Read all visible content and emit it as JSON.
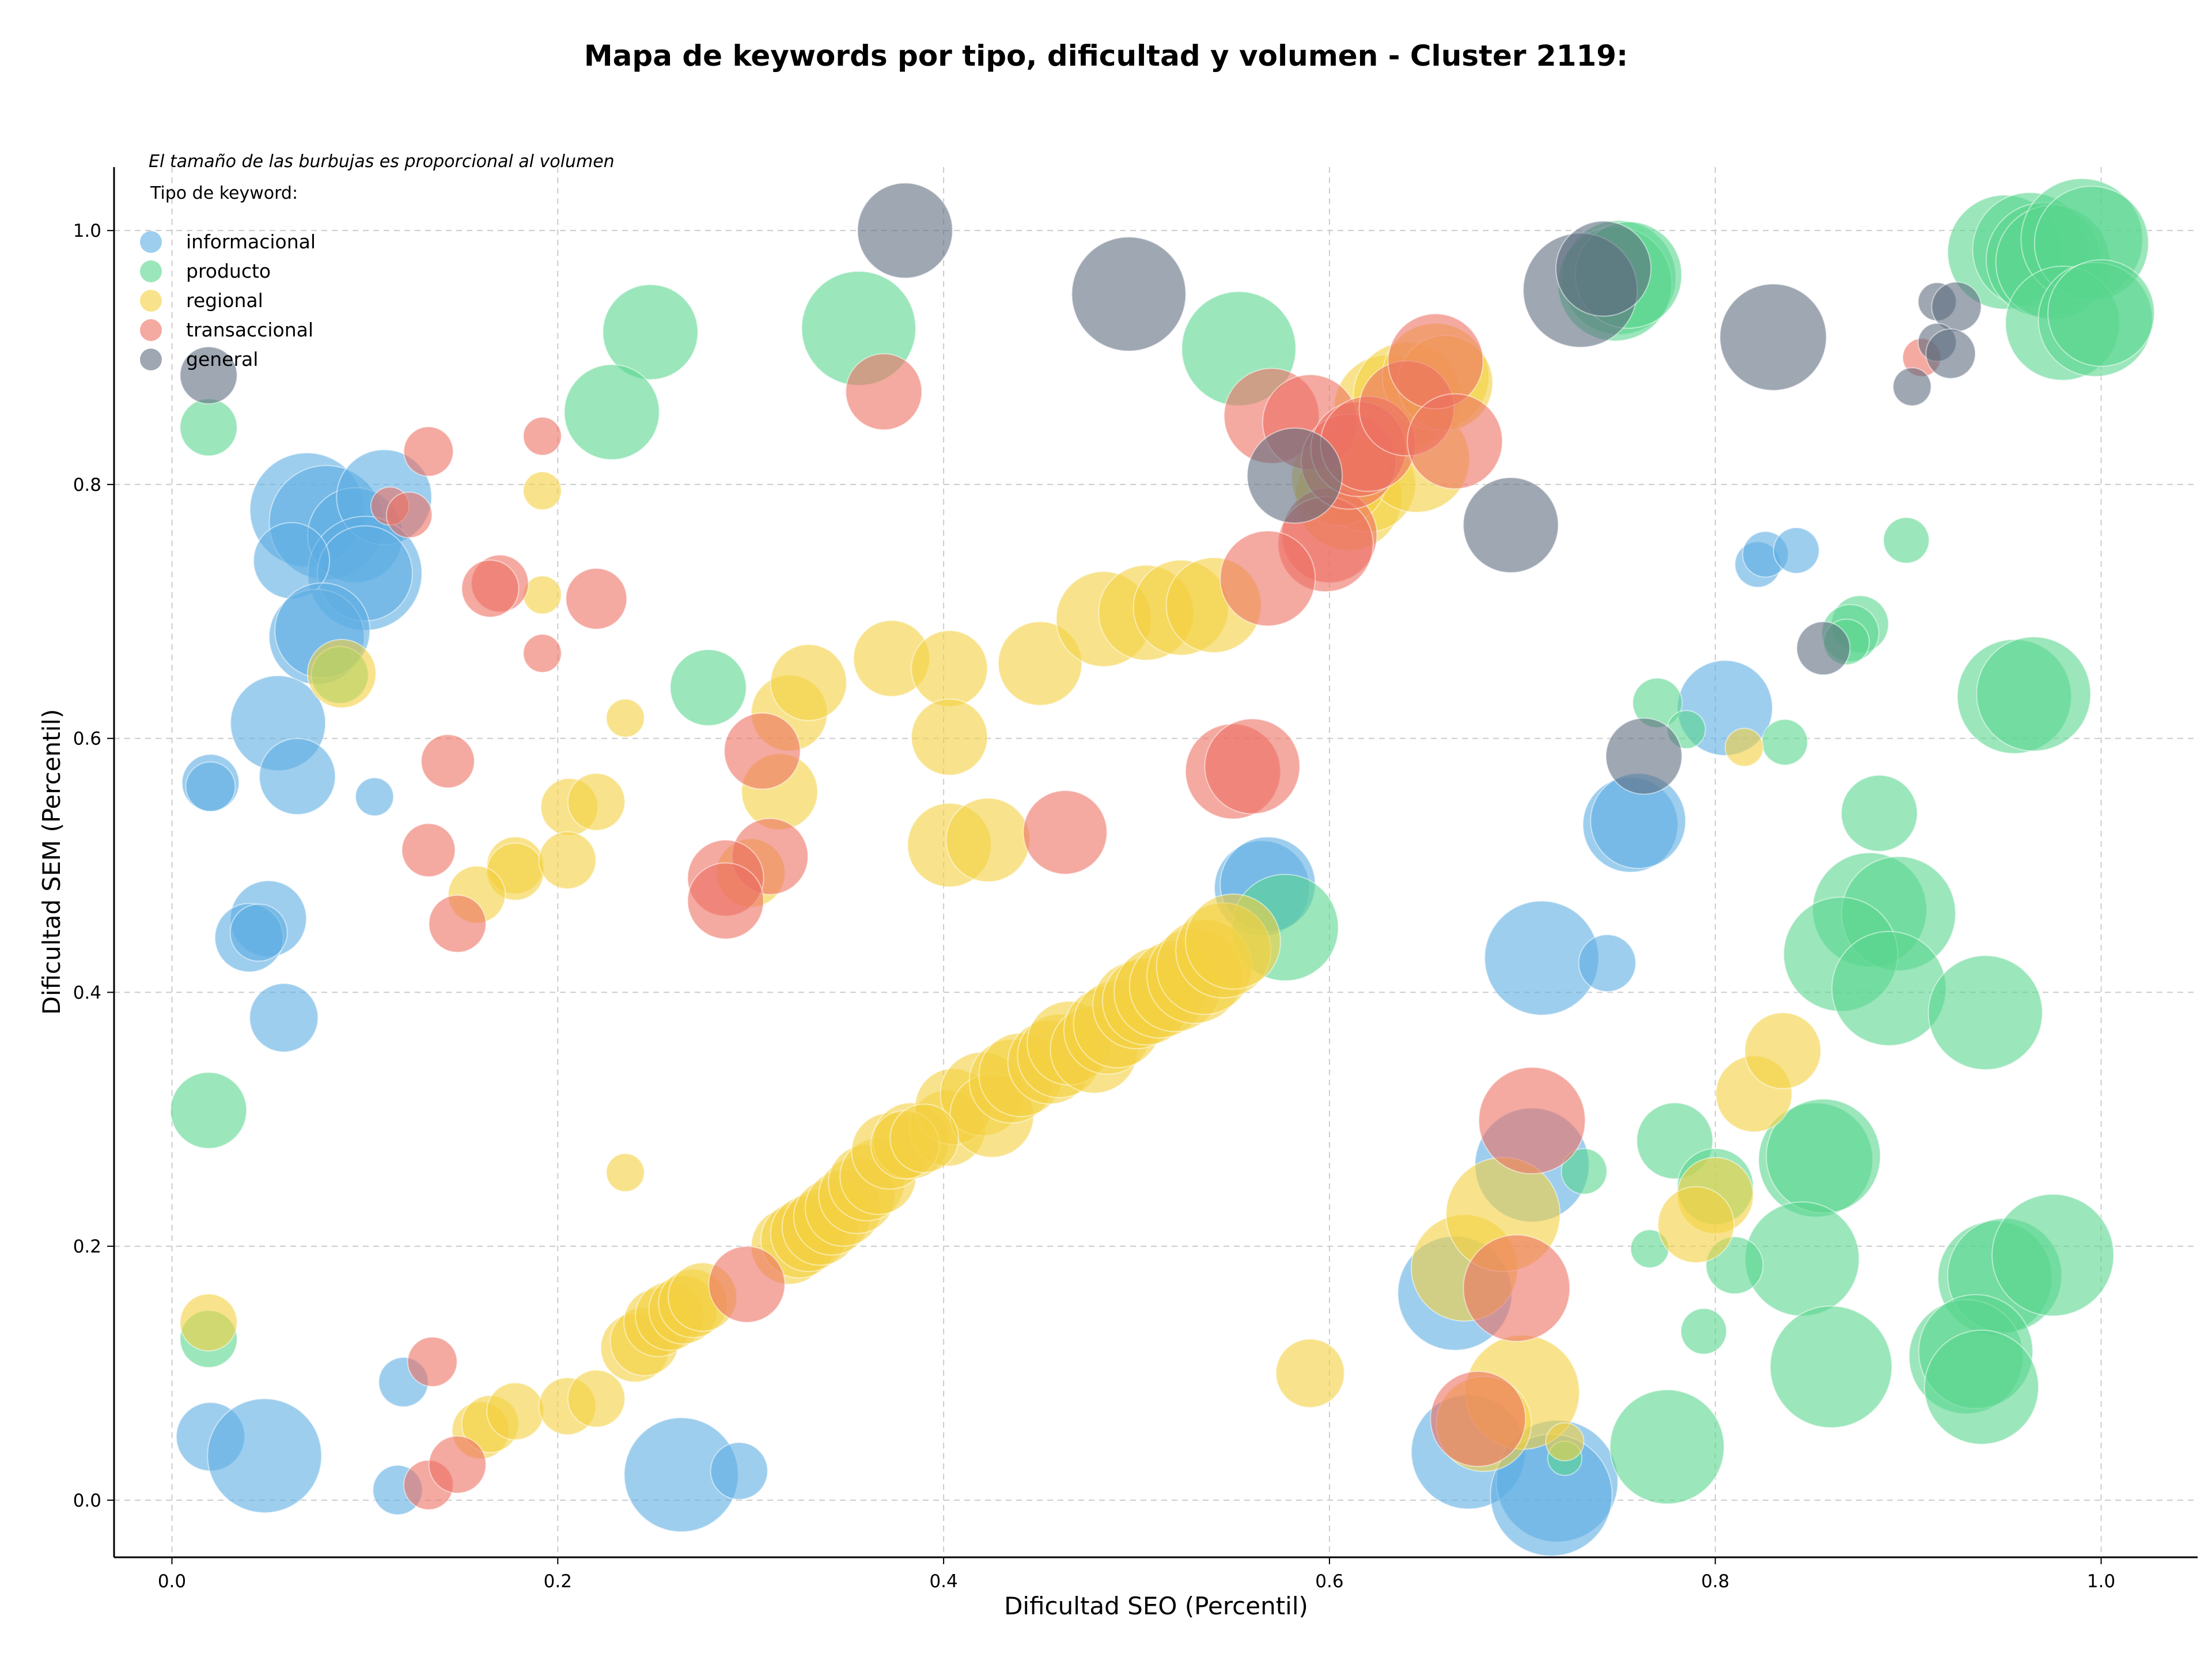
{
  "chart_data": {
    "type": "scatter",
    "title": "Mapa de keywords por tipo, dificultad y volumen - Cluster 2119:",
    "xlabel": "Dificultad SEO (Percentil)",
    "ylabel": "Dificultad SEM (Percentil)",
    "xlim": [
      -0.03,
      1.05
    ],
    "ylim": [
      -0.045,
      1.05
    ],
    "xticks": [
      "0.0",
      "0.2",
      "0.4",
      "0.6",
      "0.8",
      "1.0"
    ],
    "yticks": [
      "0.0",
      "0.2",
      "0.4",
      "0.6",
      "0.8",
      "1.0"
    ],
    "grid": true,
    "size_note": "El tamaño de las burbujas es proporcional al volumen",
    "legend_title": "Tipo de keyword:",
    "legend_position": "top-left",
    "series": [
      {
        "name": "informacional",
        "color": "#5dade2",
        "points": [
          [
            0.07,
            0.78,
            3
          ],
          [
            0.08,
            0.77,
            3
          ],
          [
            0.095,
            0.76,
            2.5
          ],
          [
            0.11,
            0.79,
            2.5
          ],
          [
            0.1,
            0.73,
            3
          ],
          [
            0.1,
            0.73,
            2.5
          ],
          [
            0.062,
            0.74,
            2
          ],
          [
            0.075,
            0.68,
            2.5
          ],
          [
            0.078,
            0.685,
            2.5
          ],
          [
            0.055,
            0.612,
            2.5
          ],
          [
            0.065,
            0.57,
            2
          ],
          [
            0.02,
            0.565,
            1.5
          ],
          [
            0.02,
            0.562,
            1.3
          ],
          [
            0.105,
            0.554,
            1
          ],
          [
            0.05,
            0.458,
            2
          ],
          [
            0.04,
            0.443,
            1.8
          ],
          [
            0.045,
            0.447,
            1.5
          ],
          [
            0.058,
            0.38,
            1.8
          ],
          [
            0.02,
            0.05,
            1.8
          ],
          [
            0.048,
            0.035,
            3
          ],
          [
            0.12,
            0.093,
            1.3
          ],
          [
            0.117,
            0.008,
            1.3
          ],
          [
            0.264,
            0.02,
            3
          ],
          [
            0.294,
            0.023,
            1.5
          ],
          [
            0.805,
            0.624,
            2.5
          ],
          [
            0.822,
            0.737,
            1.2
          ],
          [
            0.826,
            0.745,
            1.2
          ],
          [
            0.842,
            0.748,
            1.2
          ],
          [
            0.756,
            0.532,
            2.5
          ],
          [
            0.76,
            0.535,
            2.5
          ],
          [
            0.565,
            0.482,
            2.5
          ],
          [
            0.568,
            0.485,
            2.5
          ],
          [
            0.71,
            0.427,
            3
          ],
          [
            0.744,
            0.423,
            1.5
          ],
          [
            0.705,
            0.264,
            3
          ],
          [
            0.665,
            0.163,
            3
          ],
          [
            0.672,
            0.038,
            3
          ],
          [
            0.718,
            0.015,
            3.2
          ],
          [
            0.715,
            0.004,
            3.2
          ]
        ]
      },
      {
        "name": "producto",
        "color": "#58d68d",
        "points": [
          [
            0.019,
            0.845,
            1.5
          ],
          [
            0.248,
            0.92,
            2.5
          ],
          [
            0.356,
            0.923,
            3
          ],
          [
            0.228,
            0.857,
            2.5
          ],
          [
            0.278,
            0.64,
            2
          ],
          [
            0.087,
            0.65,
            1.5
          ],
          [
            0.019,
            0.307,
            2
          ],
          [
            0.019,
            0.127,
            1.5
          ],
          [
            0.553,
            0.907,
            3
          ],
          [
            0.577,
            0.451,
            2.8
          ],
          [
            0.75,
            0.963,
            3
          ],
          [
            0.748,
            0.958,
            3
          ],
          [
            0.755,
            0.965,
            2.8
          ],
          [
            0.95,
            0.983,
            3
          ],
          [
            0.963,
            0.985,
            3
          ],
          [
            0.97,
            0.977,
            3
          ],
          [
            0.975,
            0.975,
            3
          ],
          [
            0.99,
            0.993,
            3.2
          ],
          [
            0.995,
            0.99,
            3
          ],
          [
            0.98,
            0.927,
            3
          ],
          [
            0.997,
            0.93,
            3
          ],
          [
            1.0,
            0.935,
            2.8
          ],
          [
            0.899,
            0.756,
            1.2
          ],
          [
            0.875,
            0.69,
            1.5
          ],
          [
            0.87,
            0.683,
            1.5
          ],
          [
            0.868,
            0.676,
            1.2
          ],
          [
            0.955,
            0.633,
            3
          ],
          [
            0.965,
            0.635,
            3
          ],
          [
            0.77,
            0.628,
            1.3
          ],
          [
            0.785,
            0.607,
            1
          ],
          [
            0.836,
            0.597,
            1.2
          ],
          [
            0.885,
            0.541,
            2
          ],
          [
            0.88,
            0.465,
            3
          ],
          [
            0.895,
            0.462,
            3
          ],
          [
            0.865,
            0.43,
            3
          ],
          [
            0.89,
            0.403,
            3
          ],
          [
            0.94,
            0.384,
            3
          ],
          [
            0.779,
            0.283,
            2
          ],
          [
            0.8,
            0.247,
            2
          ],
          [
            0.732,
            0.259,
            1.2
          ],
          [
            0.852,
            0.268,
            3
          ],
          [
            0.856,
            0.271,
            3
          ],
          [
            0.845,
            0.19,
            3
          ],
          [
            0.81,
            0.185,
            1.5
          ],
          [
            0.766,
            0.198,
            1
          ],
          [
            0.794,
            0.133,
            1.2
          ],
          [
            0.945,
            0.175,
            3
          ],
          [
            0.95,
            0.177,
            3
          ],
          [
            0.975,
            0.193,
            3.2
          ],
          [
            0.93,
            0.113,
            3
          ],
          [
            0.935,
            0.117,
            3
          ],
          [
            0.938,
            0.089,
            3
          ],
          [
            0.86,
            0.105,
            3.2
          ],
          [
            0.775,
            0.042,
            3
          ],
          [
            0.722,
            0.033,
            0.9
          ]
        ]
      },
      {
        "name": "regional",
        "color": "#f4d03f",
        "points": [
          [
            0.192,
            0.795,
            1
          ],
          [
            0.192,
            0.713,
            1
          ],
          [
            0.088,
            0.651,
            1.8
          ],
          [
            0.235,
            0.616,
            1
          ],
          [
            0.206,
            0.546,
            1.5
          ],
          [
            0.22,
            0.55,
            1.5
          ],
          [
            0.178,
            0.5,
            1.5
          ],
          [
            0.178,
            0.495,
            1.5
          ],
          [
            0.158,
            0.477,
            1.5
          ],
          [
            0.205,
            0.504,
            1.5
          ],
          [
            0.235,
            0.258,
            1
          ],
          [
            0.019,
            0.14,
            1.5
          ],
          [
            0.16,
            0.055,
            1.5
          ],
          [
            0.165,
            0.06,
            1.5
          ],
          [
            0.178,
            0.07,
            1.5
          ],
          [
            0.205,
            0.074,
            1.5
          ],
          [
            0.22,
            0.08,
            1.5
          ],
          [
            0.32,
            0.62,
            2
          ],
          [
            0.33,
            0.644,
            2
          ],
          [
            0.315,
            0.558,
            2
          ],
          [
            0.3,
            0.494,
            1.8
          ],
          [
            0.373,
            0.663,
            2
          ],
          [
            0.403,
            0.655,
            2
          ],
          [
            0.403,
            0.601,
            2
          ],
          [
            0.403,
            0.516,
            2.2
          ],
          [
            0.423,
            0.52,
            2.2
          ],
          [
            0.45,
            0.659,
            2.2
          ],
          [
            0.483,
            0.694,
            2.5
          ],
          [
            0.505,
            0.699,
            2.5
          ],
          [
            0.523,
            0.703,
            2.5
          ],
          [
            0.54,
            0.705,
            2.5
          ],
          [
            0.59,
            0.1,
            1.8
          ],
          [
            0.61,
            0.79,
            2.8
          ],
          [
            0.62,
            0.8,
            2.5
          ],
          [
            0.63,
            0.86,
            2.8
          ],
          [
            0.64,
            0.87,
            2.8
          ],
          [
            0.645,
            0.82,
            2.8
          ],
          [
            0.655,
            0.885,
            2.8
          ],
          [
            0.66,
            0.88,
            2.5
          ],
          [
            0.605,
            0.805,
            2.5
          ],
          [
            0.82,
            0.32,
            2
          ],
          [
            0.835,
            0.354,
            2
          ],
          [
            0.815,
            0.593,
            1
          ],
          [
            0.8,
            0.24,
            2
          ],
          [
            0.79,
            0.217,
            2
          ],
          [
            0.67,
            0.183,
            2.8
          ],
          [
            0.69,
            0.225,
            3
          ],
          [
            0.7,
            0.085,
            3
          ],
          [
            0.68,
            0.06,
            2.5
          ],
          [
            0.722,
            0.046,
            1
          ],
          [
            0.24,
            0.12,
            1.8
          ],
          [
            0.245,
            0.125,
            1.8
          ],
          [
            0.252,
            0.14,
            1.8
          ],
          [
            0.258,
            0.145,
            1.8
          ],
          [
            0.265,
            0.15,
            1.8
          ],
          [
            0.27,
            0.155,
            1.8
          ],
          [
            0.275,
            0.16,
            1.8
          ],
          [
            0.32,
            0.2,
            2
          ],
          [
            0.325,
            0.205,
            2
          ],
          [
            0.33,
            0.21,
            2
          ],
          [
            0.336,
            0.215,
            2
          ],
          [
            0.342,
            0.223,
            2
          ],
          [
            0.348,
            0.23,
            2
          ],
          [
            0.355,
            0.24,
            2
          ],
          [
            0.36,
            0.25,
            2
          ],
          [
            0.366,
            0.255,
            2
          ],
          [
            0.372,
            0.275,
            2
          ],
          [
            0.383,
            0.283,
            2
          ],
          [
            0.402,
            0.293,
            2
          ],
          [
            0.405,
            0.31,
            2
          ],
          [
            0.42,
            0.32,
            2.2
          ],
          [
            0.425,
            0.303,
            2.2
          ],
          [
            0.435,
            0.33,
            2.2
          ],
          [
            0.44,
            0.335,
            2.2
          ],
          [
            0.455,
            0.345,
            2.2
          ],
          [
            0.46,
            0.35,
            2.2
          ],
          [
            0.465,
            0.36,
            2.2
          ],
          [
            0.478,
            0.355,
            2.3
          ],
          [
            0.485,
            0.37,
            2.3
          ],
          [
            0.49,
            0.375,
            2.3
          ],
          [
            0.5,
            0.39,
            2.3
          ],
          [
            0.505,
            0.393,
            2.3
          ],
          [
            0.512,
            0.4,
            2.4
          ],
          [
            0.52,
            0.405,
            2.4
          ],
          [
            0.53,
            0.413,
            2.5
          ],
          [
            0.535,
            0.42,
            2.5
          ],
          [
            0.545,
            0.433,
            2.5
          ],
          [
            0.55,
            0.44,
            2.5
          ],
          [
            0.38,
            0.28,
            1.8
          ],
          [
            0.39,
            0.285,
            1.8
          ]
        ]
      },
      {
        "name": "transaccional",
        "color": "#ec7063",
        "points": [
          [
            0.133,
            0.826,
            1.3
          ],
          [
            0.192,
            0.838,
            1
          ],
          [
            0.113,
            0.783,
            1
          ],
          [
            0.123,
            0.776,
            1.2
          ],
          [
            0.17,
            0.722,
            1.5
          ],
          [
            0.165,
            0.718,
            1.5
          ],
          [
            0.22,
            0.71,
            1.6
          ],
          [
            0.192,
            0.667,
            1
          ],
          [
            0.143,
            0.582,
            1.4
          ],
          [
            0.133,
            0.512,
            1.4
          ],
          [
            0.148,
            0.454,
            1.5
          ],
          [
            0.306,
            0.59,
            2
          ],
          [
            0.31,
            0.507,
            2
          ],
          [
            0.287,
            0.49,
            2
          ],
          [
            0.287,
            0.472,
            2
          ],
          [
            0.369,
            0.873,
            2
          ],
          [
            0.463,
            0.526,
            2.2
          ],
          [
            0.298,
            0.17,
            2
          ],
          [
            0.135,
            0.109,
            1.3
          ],
          [
            0.133,
            0.012,
            1.3
          ],
          [
            0.148,
            0.028,
            1.5
          ],
          [
            0.57,
            0.854,
            2.5
          ],
          [
            0.59,
            0.849,
            2.5
          ],
          [
            0.6,
            0.76,
            2.5
          ],
          [
            0.598,
            0.753,
            2.5
          ],
          [
            0.568,
            0.726,
            2.5
          ],
          [
            0.61,
            0.818,
            2.5
          ],
          [
            0.615,
            0.828,
            2.5
          ],
          [
            0.62,
            0.832,
            2.5
          ],
          [
            0.64,
            0.86,
            2.5
          ],
          [
            0.655,
            0.897,
            2.5
          ],
          [
            0.665,
            0.834,
            2.5
          ],
          [
            0.55,
            0.574,
            2.5
          ],
          [
            0.56,
            0.578,
            2.5
          ],
          [
            0.907,
            0.9,
            1
          ],
          [
            0.705,
            0.299,
            2.8
          ],
          [
            0.697,
            0.167,
            2.8
          ],
          [
            0.677,
            0.064,
            2.5
          ]
        ]
      },
      {
        "name": "general",
        "color": "#5d6d7e",
        "points": [
          [
            0.019,
            0.886,
            1.5
          ],
          [
            0.38,
            1.0,
            2.5
          ],
          [
            0.496,
            0.95,
            3
          ],
          [
            0.582,
            0.807,
            2.5
          ],
          [
            0.694,
            0.768,
            2.5
          ],
          [
            0.73,
            0.953,
            3
          ],
          [
            0.742,
            0.97,
            2.5
          ],
          [
            0.83,
            0.916,
            2.8
          ],
          [
            0.915,
            0.944,
            1
          ],
          [
            0.925,
            0.94,
            1.3
          ],
          [
            0.915,
            0.912,
            1
          ],
          [
            0.922,
            0.903,
            1.3
          ],
          [
            0.902,
            0.877,
            1
          ],
          [
            0.856,
            0.671,
            1.4
          ],
          [
            0.763,
            0.586,
            2
          ]
        ]
      }
    ]
  }
}
